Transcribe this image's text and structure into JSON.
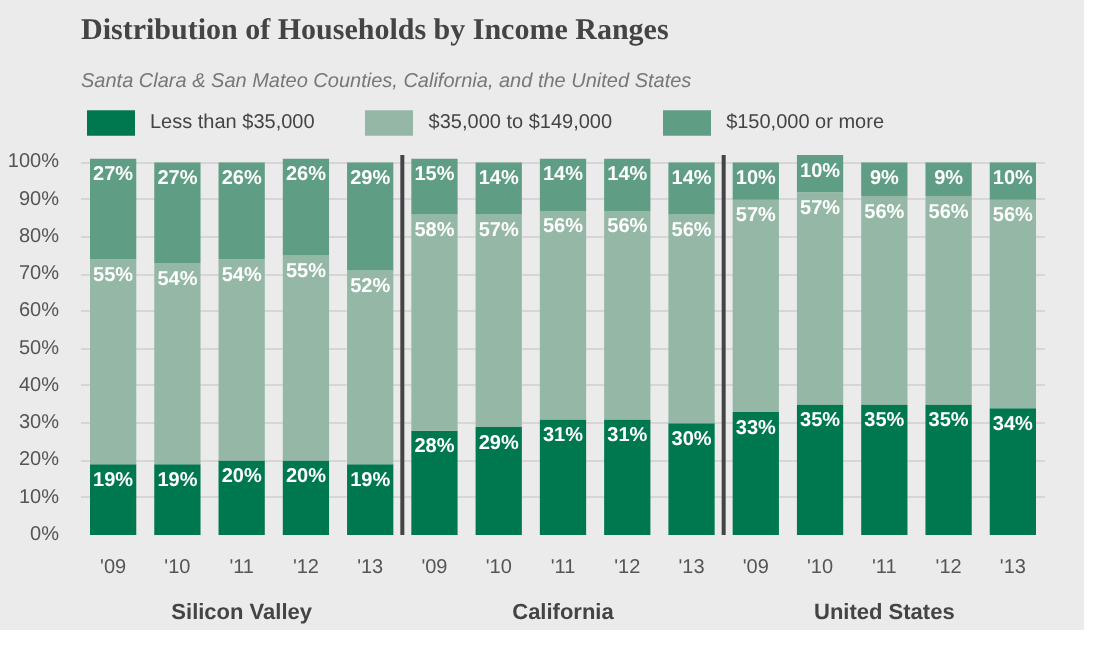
{
  "chart_data": {
    "type": "bar",
    "stacked": true,
    "title": "Distribution of Households by Income Ranges",
    "subtitle": "Santa Clara & San Mateo Counties, California, and the United States",
    "categories": [
      "'09",
      "'10",
      "'11",
      "'12",
      "'13",
      "'09",
      "'10",
      "'11",
      "'12",
      "'13",
      "'09",
      "'10",
      "'11",
      "'12",
      "'13"
    ],
    "series": [
      {
        "name": "Less than $35,000",
        "color": "#00784f",
        "values": [
          19,
          19,
          20,
          20,
          19,
          28,
          29,
          31,
          31,
          30,
          33,
          35,
          35,
          35,
          34
        ],
        "value_labels": [
          "19%",
          "19%",
          "20%",
          "20%",
          "19%",
          "28%",
          "29%",
          "31%",
          "31%",
          "30%",
          "33%",
          "35%",
          "35%",
          "35%",
          "34%"
        ]
      },
      {
        "name": "$35,000 to $149,000",
        "color": "#94b8a5",
        "values": [
          55,
          54,
          54,
          55,
          52,
          58,
          57,
          56,
          56,
          56,
          57,
          57,
          56,
          56,
          56
        ],
        "value_labels": [
          "55%",
          "54%",
          "54%",
          "55%",
          "52%",
          "58%",
          "57%",
          "56%",
          "56%",
          "56%",
          "57%",
          "57%",
          "56%",
          "56%",
          "56%"
        ]
      },
      {
        "name": "$150,000 or more",
        "color": "#5f9e84",
        "values": [
          27,
          27,
          26,
          26,
          29,
          15,
          14,
          14,
          14,
          14,
          10,
          10,
          9,
          9,
          10
        ],
        "value_labels": [
          "27%",
          "27%",
          "26%",
          "26%",
          "29%",
          "15%",
          "14%",
          "14%",
          "14%",
          "14%",
          "10%",
          "10%",
          "9%",
          "9%",
          "10%"
        ]
      }
    ],
    "annotations": [
      "Silicon Valley",
      "California",
      "United States"
    ],
    "ylim": [
      0,
      102
    ],
    "yticks": [
      {
        "value": 0,
        "label": "0%"
      },
      {
        "value": 10,
        "label": "10%"
      },
      {
        "value": 20,
        "label": "20%"
      },
      {
        "value": 30,
        "label": "30%"
      },
      {
        "value": 40,
        "label": "40%"
      },
      {
        "value": 50,
        "label": "50%"
      },
      {
        "value": 60,
        "label": "60%"
      },
      {
        "value": 70,
        "label": "70%"
      },
      {
        "value": 80,
        "label": "80%"
      },
      {
        "value": 90,
        "label": "90%"
      },
      {
        "value": 100,
        "label": "100%"
      }
    ],
    "grid": "y",
    "legend": "top left"
  }
}
